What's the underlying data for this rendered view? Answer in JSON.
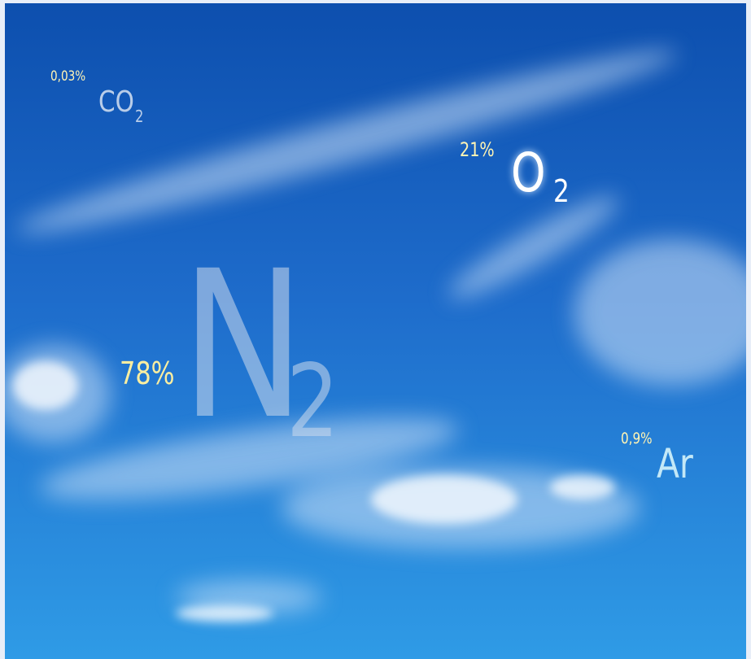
{
  "labels": [
    {
      "percent": "0,03%",
      "symbol": "CO",
      "subscript": "2"
    },
    {
      "percent": "21%",
      "symbol": "O",
      "subscript": "2"
    },
    {
      "percent": "78%",
      "symbol": "N",
      "subscript": "2"
    },
    {
      "percent": "0,9%",
      "symbol": "Ar"
    }
  ]
}
